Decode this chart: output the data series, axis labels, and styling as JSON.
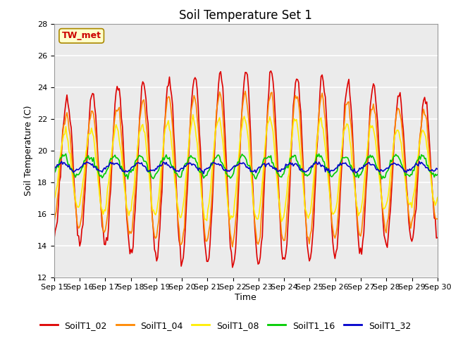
{
  "title": "Soil Temperature Set 1",
  "xlabel": "Time",
  "ylabel": "Soil Temperature (C)",
  "ylim": [
    12,
    28
  ],
  "annotation": "TW_met",
  "series_labels": [
    "SoilT1_02",
    "SoilT1_04",
    "SoilT1_08",
    "SoilT1_16",
    "SoilT1_32"
  ],
  "series_colors": [
    "#dd0000",
    "#ff8800",
    "#ffee00",
    "#00cc00",
    "#0000cc"
  ],
  "xtick_labels": [
    "Sep 15",
    "Sep 16",
    "Sep 17",
    "Sep 18",
    "Sep 19",
    "Sep 20",
    "Sep 21",
    "Sep 22",
    "Sep 23",
    "Sep 24",
    "Sep 25",
    "Sep 26",
    "Sep 27",
    "Sep 28",
    "Sep 29",
    "Sep 30"
  ],
  "background_color": "#ebebeb",
  "figure_color": "#ffffff",
  "title_fontsize": 12,
  "axis_fontsize": 9,
  "tick_fontsize": 8,
  "legend_fontsize": 9,
  "linewidth": 1.2
}
